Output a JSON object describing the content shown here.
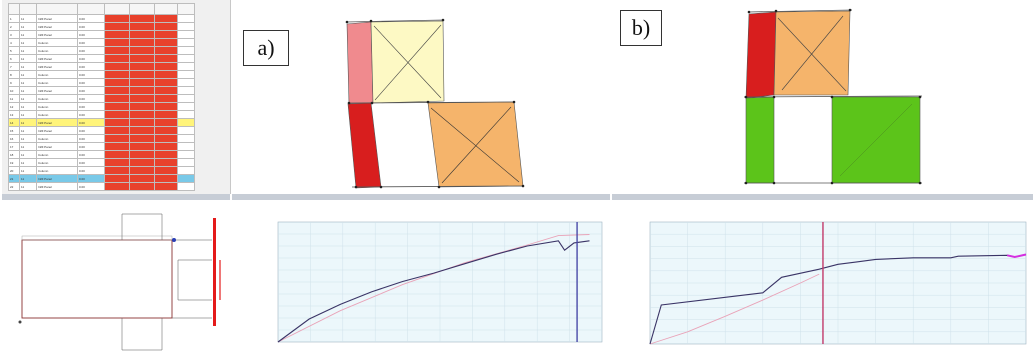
{
  "labels": {
    "a": "a)",
    "b": "b)"
  },
  "colors": {
    "red": "#d81e1e",
    "pink": "#f08a8e",
    "cream": "#fdf9c4",
    "orange": "#f5b46b",
    "green": "#5cc41a",
    "chart_bg": "#ecf7fb",
    "line_dark": "#3a3466",
    "line_pink": "#e9a3b8",
    "magenta": "#d42fe0"
  },
  "table": {
    "rows": [
      {
        "n": "1",
        "t": "11",
        "type": "Infill Panel",
        "v": "0.00",
        "style": ""
      },
      {
        "n": "2",
        "t": "11",
        "type": "Infill Panel",
        "v": "0.00",
        "style": ""
      },
      {
        "n": "3",
        "t": "11",
        "type": "Infill Panel",
        "v": "0.00",
        "style": ""
      },
      {
        "n": "4",
        "t": "11",
        "type": "Column",
        "v": "0.00",
        "style": ""
      },
      {
        "n": "5",
        "t": "11",
        "type": "Column",
        "v": "0.00",
        "style": ""
      },
      {
        "n": "6",
        "t": "11",
        "type": "Infill Panel",
        "v": "0.00",
        "style": ""
      },
      {
        "n": "7",
        "t": "11",
        "type": "Infill Panel",
        "v": "0.00",
        "style": ""
      },
      {
        "n": "8",
        "t": "11",
        "type": "Column",
        "v": "0.00",
        "style": ""
      },
      {
        "n": "9",
        "t": "11",
        "type": "Column",
        "v": "0.00",
        "style": ""
      },
      {
        "n": "10",
        "t": "11",
        "type": "Infill Panel",
        "v": "0.00",
        "style": ""
      },
      {
        "n": "11",
        "t": "11",
        "type": "Column",
        "v": "0.00",
        "style": ""
      },
      {
        "n": "12",
        "t": "11",
        "type": "Column",
        "v": "0.00",
        "style": ""
      },
      {
        "n": "13",
        "t": "11",
        "type": "Column",
        "v": "0.00",
        "style": ""
      },
      {
        "n": "14",
        "t": "11",
        "type": "Infill Panel",
        "v": "0.00",
        "style": "yellow"
      },
      {
        "n": "15",
        "t": "11",
        "type": "Infill Panel",
        "v": "0.00",
        "style": ""
      },
      {
        "n": "16",
        "t": "11",
        "type": "Column",
        "v": "0.00",
        "style": ""
      },
      {
        "n": "17",
        "t": "11",
        "type": "Infill Panel",
        "v": "0.00",
        "style": ""
      },
      {
        "n": "18",
        "t": "11",
        "type": "Column",
        "v": "0.00",
        "style": ""
      },
      {
        "n": "19",
        "t": "11",
        "type": "Column",
        "v": "0.00",
        "style": ""
      },
      {
        "n": "20",
        "t": "11",
        "type": "Column",
        "v": "0.00",
        "style": ""
      },
      {
        "n": "21",
        "t": "11",
        "type": "Infill Panel",
        "v": "0.00",
        "style": "blue"
      },
      {
        "n": "22",
        "t": "11",
        "type": "Infill Panel",
        "v": "0.00",
        "style": ""
      }
    ]
  },
  "chart_data": [
    {
      "type": "line",
      "series": [
        {
          "x": [
            0,
            0.1,
            0.2,
            0.3,
            0.4,
            0.5,
            0.6,
            0.7,
            0.8,
            0.9,
            0.92,
            0.95,
            1.0
          ],
          "y": [
            0,
            22,
            36,
            48,
            58,
            66,
            75,
            84,
            92,
            97,
            88,
            95,
            97
          ]
        },
        {
          "x": [
            0,
            0.2,
            0.4,
            0.6,
            0.8,
            0.9,
            1.0
          ],
          "y": [
            0,
            30,
            55,
            76,
            93,
            102,
            103
          ]
        }
      ],
      "xlim": [
        0,
        1.04
      ],
      "ylim": [
        0,
        115
      ]
    },
    {
      "type": "line",
      "series": [
        {
          "x": [
            0,
            0.03,
            0.3,
            0.35,
            0.45,
            0.5,
            0.55,
            0.6,
            0.7,
            0.8,
            0.82,
            0.95,
            0.97,
            1.0
          ],
          "y": [
            0,
            48,
            63,
            82,
            92,
            98,
            101,
            104,
            106,
            106,
            108,
            109,
            107,
            110
          ]
        },
        {
          "x": [
            0,
            0.1,
            0.2,
            0.3,
            0.4,
            0.45
          ],
          "y": [
            0,
            15,
            34,
            54,
            75,
            86
          ]
        }
      ],
      "xlim": [
        0,
        1.0
      ],
      "ylim": [
        0,
        150
      ]
    }
  ]
}
